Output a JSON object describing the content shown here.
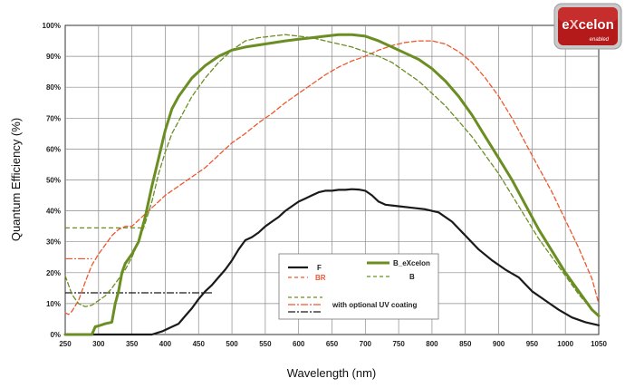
{
  "logo": {
    "text_pre": "e",
    "text_x": "X",
    "text_post": "celon",
    "sub": "enabled"
  },
  "chart_data": {
    "type": "line",
    "xlabel": "Wavelength (nm)",
    "ylabel": "Quantum Efficiency (%)",
    "xlim": [
      250,
      1050
    ],
    "ylim": [
      0,
      100
    ],
    "x_ticks": [
      250,
      300,
      350,
      400,
      450,
      500,
      550,
      600,
      650,
      700,
      750,
      800,
      850,
      900,
      950,
      1000,
      1050
    ],
    "y_ticks": [
      "0%",
      "10%",
      "20%",
      "30%",
      "40%",
      "50%",
      "60%",
      "70%",
      "80%",
      "90%",
      "100%"
    ],
    "grid": true,
    "legend_position": "bottom-center",
    "series": [
      {
        "name": "F",
        "color": "#1a1a1a",
        "style": "solid",
        "width": 2.2,
        "points": [
          [
            250,
            0
          ],
          [
            280,
            0
          ],
          [
            300,
            0
          ],
          [
            350,
            0
          ],
          [
            380,
            0
          ],
          [
            395,
            1
          ],
          [
            410,
            2.5
          ],
          [
            420,
            3.5
          ],
          [
            430,
            6
          ],
          [
            440,
            8.5
          ],
          [
            450,
            11.5
          ],
          [
            460,
            14
          ],
          [
            470,
            16
          ],
          [
            480,
            18.5
          ],
          [
            490,
            21
          ],
          [
            500,
            24
          ],
          [
            510,
            27.5
          ],
          [
            520,
            30.5
          ],
          [
            530,
            31.5
          ],
          [
            540,
            33
          ],
          [
            550,
            35
          ],
          [
            560,
            36.5
          ],
          [
            570,
            38
          ],
          [
            580,
            40
          ],
          [
            590,
            41.5
          ],
          [
            600,
            43
          ],
          [
            610,
            44
          ],
          [
            620,
            45
          ],
          [
            630,
            46
          ],
          [
            640,
            46.5
          ],
          [
            650,
            46.5
          ],
          [
            660,
            46.8
          ],
          [
            670,
            46.8
          ],
          [
            680,
            47
          ],
          [
            690,
            46.9
          ],
          [
            700,
            46.5
          ],
          [
            710,
            45
          ],
          [
            720,
            43
          ],
          [
            730,
            42
          ],
          [
            750,
            41.5
          ],
          [
            770,
            41
          ],
          [
            790,
            40.5
          ],
          [
            810,
            39.5
          ],
          [
            830,
            36.5
          ],
          [
            850,
            32
          ],
          [
            870,
            27.5
          ],
          [
            890,
            24
          ],
          [
            910,
            21
          ],
          [
            930,
            18.5
          ],
          [
            950,
            14
          ],
          [
            970,
            11
          ],
          [
            990,
            8
          ],
          [
            1010,
            5.5
          ],
          [
            1030,
            4
          ],
          [
            1050,
            3
          ]
        ]
      },
      {
        "name": "BR",
        "color": "#f0562c",
        "style": "dashed",
        "width": 1.3,
        "points": [
          [
            250,
            7
          ],
          [
            255,
            6.5
          ],
          [
            260,
            7.5
          ],
          [
            270,
            11
          ],
          [
            280,
            17
          ],
          [
            290,
            22.5
          ],
          [
            300,
            26
          ],
          [
            310,
            29
          ],
          [
            320,
            32
          ],
          [
            330,
            34
          ],
          [
            340,
            35
          ],
          [
            350,
            35
          ],
          [
            360,
            37
          ],
          [
            370,
            39
          ],
          [
            380,
            41
          ],
          [
            390,
            43
          ],
          [
            400,
            45
          ],
          [
            420,
            48
          ],
          [
            440,
            51
          ],
          [
            460,
            54
          ],
          [
            480,
            58
          ],
          [
            500,
            62
          ],
          [
            520,
            65
          ],
          [
            540,
            68.5
          ],
          [
            560,
            71.5
          ],
          [
            580,
            75
          ],
          [
            600,
            78
          ],
          [
            620,
            81
          ],
          [
            640,
            84
          ],
          [
            660,
            86.5
          ],
          [
            680,
            88.5
          ],
          [
            700,
            90
          ],
          [
            720,
            92
          ],
          [
            740,
            93.5
          ],
          [
            760,
            94.5
          ],
          [
            780,
            95
          ],
          [
            800,
            95
          ],
          [
            820,
            94
          ],
          [
            840,
            91.5
          ],
          [
            860,
            88
          ],
          [
            880,
            83
          ],
          [
            900,
            77
          ],
          [
            920,
            70
          ],
          [
            940,
            62
          ],
          [
            960,
            54
          ],
          [
            980,
            46
          ],
          [
            1000,
            37
          ],
          [
            1020,
            28
          ],
          [
            1040,
            18
          ],
          [
            1050,
            10
          ]
        ]
      },
      {
        "name": "B_eXcelon",
        "color": "#6b8e23",
        "style": "solid",
        "width": 3,
        "points": [
          [
            250,
            0
          ],
          [
            280,
            0
          ],
          [
            290,
            0
          ],
          [
            295,
            2.5
          ],
          [
            300,
            2.8
          ],
          [
            310,
            3.5
          ],
          [
            320,
            4
          ],
          [
            325,
            10
          ],
          [
            330,
            14
          ],
          [
            335,
            20
          ],
          [
            340,
            23
          ],
          [
            350,
            26
          ],
          [
            360,
            30
          ],
          [
            370,
            38
          ],
          [
            380,
            48
          ],
          [
            390,
            57
          ],
          [
            400,
            66
          ],
          [
            410,
            73
          ],
          [
            420,
            77
          ],
          [
            430,
            80
          ],
          [
            440,
            83
          ],
          [
            460,
            87
          ],
          [
            480,
            90
          ],
          [
            500,
            92
          ],
          [
            520,
            93
          ],
          [
            550,
            94
          ],
          [
            580,
            95
          ],
          [
            600,
            95.5
          ],
          [
            620,
            96
          ],
          [
            640,
            96.5
          ],
          [
            660,
            97
          ],
          [
            680,
            97
          ],
          [
            700,
            96.5
          ],
          [
            720,
            95
          ],
          [
            740,
            93
          ],
          [
            760,
            91
          ],
          [
            780,
            89
          ],
          [
            800,
            86
          ],
          [
            820,
            82
          ],
          [
            840,
            77
          ],
          [
            860,
            71
          ],
          [
            880,
            64
          ],
          [
            900,
            57
          ],
          [
            920,
            50
          ],
          [
            940,
            42
          ],
          [
            960,
            34
          ],
          [
            980,
            27
          ],
          [
            1000,
            20
          ],
          [
            1020,
            14
          ],
          [
            1040,
            8
          ],
          [
            1050,
            6
          ]
        ]
      },
      {
        "name": "B",
        "color": "#6b8e23",
        "style": "dashed",
        "width": 1.3,
        "points": [
          [
            250,
            19
          ],
          [
            260,
            13
          ],
          [
            270,
            10
          ],
          [
            280,
            9
          ],
          [
            290,
            9.5
          ],
          [
            300,
            11
          ],
          [
            310,
            12.5
          ],
          [
            320,
            15
          ],
          [
            330,
            18
          ],
          [
            340,
            21
          ],
          [
            350,
            25
          ],
          [
            360,
            30
          ],
          [
            370,
            36
          ],
          [
            380,
            43
          ],
          [
            390,
            52
          ],
          [
            400,
            59
          ],
          [
            410,
            65
          ],
          [
            420,
            69
          ],
          [
            430,
            73
          ],
          [
            440,
            77
          ],
          [
            460,
            83
          ],
          [
            480,
            88
          ],
          [
            500,
            92
          ],
          [
            520,
            95
          ],
          [
            540,
            96
          ],
          [
            560,
            96.5
          ],
          [
            580,
            97
          ],
          [
            600,
            96.5
          ],
          [
            620,
            96
          ],
          [
            640,
            95
          ],
          [
            660,
            94
          ],
          [
            680,
            93
          ],
          [
            700,
            91.5
          ],
          [
            720,
            90
          ],
          [
            740,
            88
          ],
          [
            760,
            85
          ],
          [
            780,
            82
          ],
          [
            800,
            78
          ],
          [
            820,
            74
          ],
          [
            840,
            69
          ],
          [
            860,
            64
          ],
          [
            880,
            58
          ],
          [
            900,
            52
          ],
          [
            920,
            45
          ],
          [
            940,
            38
          ],
          [
            960,
            31
          ],
          [
            980,
            25
          ],
          [
            1000,
            19
          ],
          [
            1020,
            13
          ],
          [
            1040,
            8
          ],
          [
            1050,
            6
          ]
        ]
      }
    ],
    "uv_lines": [
      {
        "color": "#6b8e23",
        "style": "dash",
        "y": 34.5,
        "x1": 250,
        "x2": 370
      },
      {
        "color": "#f0562c",
        "style": "dashdot",
        "y": 24.5,
        "x1": 250,
        "x2": 290
      },
      {
        "color": "#1a1a1a",
        "style": "dashdot",
        "y": 13.5,
        "x1": 250,
        "x2": 470
      }
    ],
    "legend": {
      "F": "F",
      "BR": "BR",
      "B_eXcelon": "B_eXcelon",
      "B": "B",
      "uv": "with optional UV coating"
    }
  }
}
